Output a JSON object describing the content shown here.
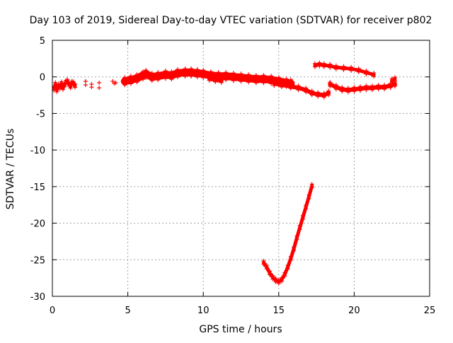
{
  "chart_data": {
    "type": "scatter",
    "title": "Day 103 of 2019, Sidereal Day-to-day VTEC variation (SDTVAR) for receiver p802",
    "xlabel": "GPS time / hours",
    "ylabel": "SDTVAR / TECUs",
    "xlim": [
      0,
      25
    ],
    "ylim": [
      -30,
      5
    ],
    "xticks": [
      0,
      5,
      10,
      15,
      20,
      25
    ],
    "xtick_labels": [
      "0",
      "5",
      "10",
      "15",
      "20",
      "25"
    ],
    "yticks": [
      5,
      0,
      -5,
      -10,
      -15,
      -20,
      -25,
      -30
    ],
    "ytick_labels": [
      "5",
      "0",
      "-5",
      "-10",
      "-15",
      "-20",
      "-25",
      "-30"
    ],
    "grid": true,
    "marker": "+",
    "colors": {
      "series": "#ff0000",
      "axis": "#000000",
      "grid": "#a0a0a0"
    },
    "series": [
      {
        "name": "sdtvar",
        "segments": [
          {
            "points": [
              [
                0.1,
                -1.6
              ],
              [
                0.2,
                -1.0
              ],
              [
                0.3,
                -1.8
              ],
              [
                0.4,
                -1.2
              ],
              [
                0.5,
                -1.4
              ],
              [
                0.6,
                -0.9
              ],
              [
                0.7,
                -1.5
              ],
              [
                0.8,
                -1.1
              ],
              [
                0.9,
                -0.7
              ],
              [
                1.0,
                -0.6
              ],
              [
                1.1,
                -1.0
              ],
              [
                1.2,
                -1.3
              ],
              [
                1.3,
                -0.8
              ],
              [
                1.4,
                -0.9
              ],
              [
                1.5,
                -1.2
              ]
            ],
            "thick": 5
          },
          {
            "points": [
              [
                2.2,
                -0.6
              ],
              [
                2.2,
                -1.1
              ],
              [
                2.6,
                -1.0
              ],
              [
                2.6,
                -1.4
              ],
              [
                3.1,
                -0.8
              ],
              [
                3.1,
                -1.5
              ]
            ],
            "thick": 0
          },
          {
            "points": [
              [
                4.0,
                -0.6
              ],
              [
                4.1,
                -0.9
              ],
              [
                4.2,
                -0.8
              ]
            ],
            "thick": 0
          },
          {
            "points": [
              [
                4.8,
                -0.6
              ],
              [
                5.2,
                -0.4
              ],
              [
                5.6,
                -0.2
              ],
              [
                6.0,
                0.2
              ],
              [
                6.2,
                0.4
              ],
              [
                6.6,
                0.0
              ],
              [
                7.0,
                0.1
              ],
              [
                7.5,
                0.3
              ],
              [
                7.9,
                0.2
              ],
              [
                8.3,
                0.5
              ],
              [
                8.8,
                0.6
              ],
              [
                9.2,
                0.6
              ],
              [
                9.6,
                0.5
              ],
              [
                10.0,
                0.4
              ],
              [
                10.5,
                0.2
              ],
              [
                11.0,
                0.1
              ],
              [
                11.5,
                0.1
              ],
              [
                12.0,
                0.0
              ],
              [
                12.5,
                -0.1
              ],
              [
                13.0,
                -0.2
              ],
              [
                13.5,
                -0.3
              ],
              [
                14.0,
                -0.3
              ],
              [
                14.5,
                -0.4
              ],
              [
                15.0,
                -0.6
              ],
              [
                15.5,
                -0.8
              ],
              [
                15.8,
                -0.9
              ]
            ],
            "thick": 11
          },
          {
            "points": [
              [
                10.4,
                -0.2
              ],
              [
                10.8,
                -0.4
              ],
              [
                11.2,
                -0.5
              ]
            ],
            "thick": 6
          },
          {
            "points": [
              [
                14.7,
                -0.9
              ],
              [
                15.2,
                -1.1
              ],
              [
                15.8,
                -1.3
              ],
              [
                16.3,
                -1.5
              ],
              [
                16.8,
                -1.8
              ],
              [
                17.2,
                -2.2
              ],
              [
                17.6,
                -2.4
              ],
              [
                18.0,
                -2.5
              ],
              [
                18.3,
                -2.2
              ]
            ],
            "thick": 6
          },
          {
            "points": [
              [
                17.4,
                1.6
              ],
              [
                17.7,
                1.7
              ],
              [
                18.0,
                1.6
              ],
              [
                18.4,
                1.5
              ],
              [
                18.8,
                1.3
              ],
              [
                19.3,
                1.2
              ],
              [
                19.8,
                1.1
              ],
              [
                20.3,
                0.9
              ],
              [
                20.8,
                0.6
              ],
              [
                21.3,
                0.3
              ]
            ],
            "thick": 5
          },
          {
            "points": [
              [
                18.4,
                -1.0
              ],
              [
                18.8,
                -1.4
              ],
              [
                19.2,
                -1.7
              ],
              [
                19.6,
                -1.8
              ],
              [
                20.0,
                -1.7
              ],
              [
                20.4,
                -1.6
              ],
              [
                20.8,
                -1.5
              ],
              [
                21.2,
                -1.5
              ],
              [
                21.6,
                -1.4
              ],
              [
                22.0,
                -1.4
              ],
              [
                22.4,
                -1.2
              ],
              [
                22.7,
                -1.0
              ]
            ],
            "thick": 6
          },
          {
            "points": [
              [
                22.5,
                -0.5
              ],
              [
                22.7,
                -0.3
              ]
            ],
            "thick": 5
          },
          {
            "points": [
              [
                14.0,
                -25.4
              ],
              [
                14.2,
                -26.0
              ],
              [
                14.4,
                -26.8
              ],
              [
                14.6,
                -27.4
              ],
              [
                14.8,
                -27.8
              ],
              [
                15.0,
                -28.0
              ],
              [
                15.2,
                -27.7
              ],
              [
                15.4,
                -27.0
              ],
              [
                15.6,
                -26.0
              ],
              [
                15.8,
                -24.8
              ],
              [
                16.0,
                -23.5
              ],
              [
                16.2,
                -22.0
              ],
              [
                16.4,
                -20.6
              ],
              [
                16.6,
                -19.2
              ],
              [
                16.8,
                -17.8
              ],
              [
                17.0,
                -16.4
              ],
              [
                17.2,
                -14.9
              ]
            ],
            "thick": 5
          }
        ]
      }
    ]
  }
}
